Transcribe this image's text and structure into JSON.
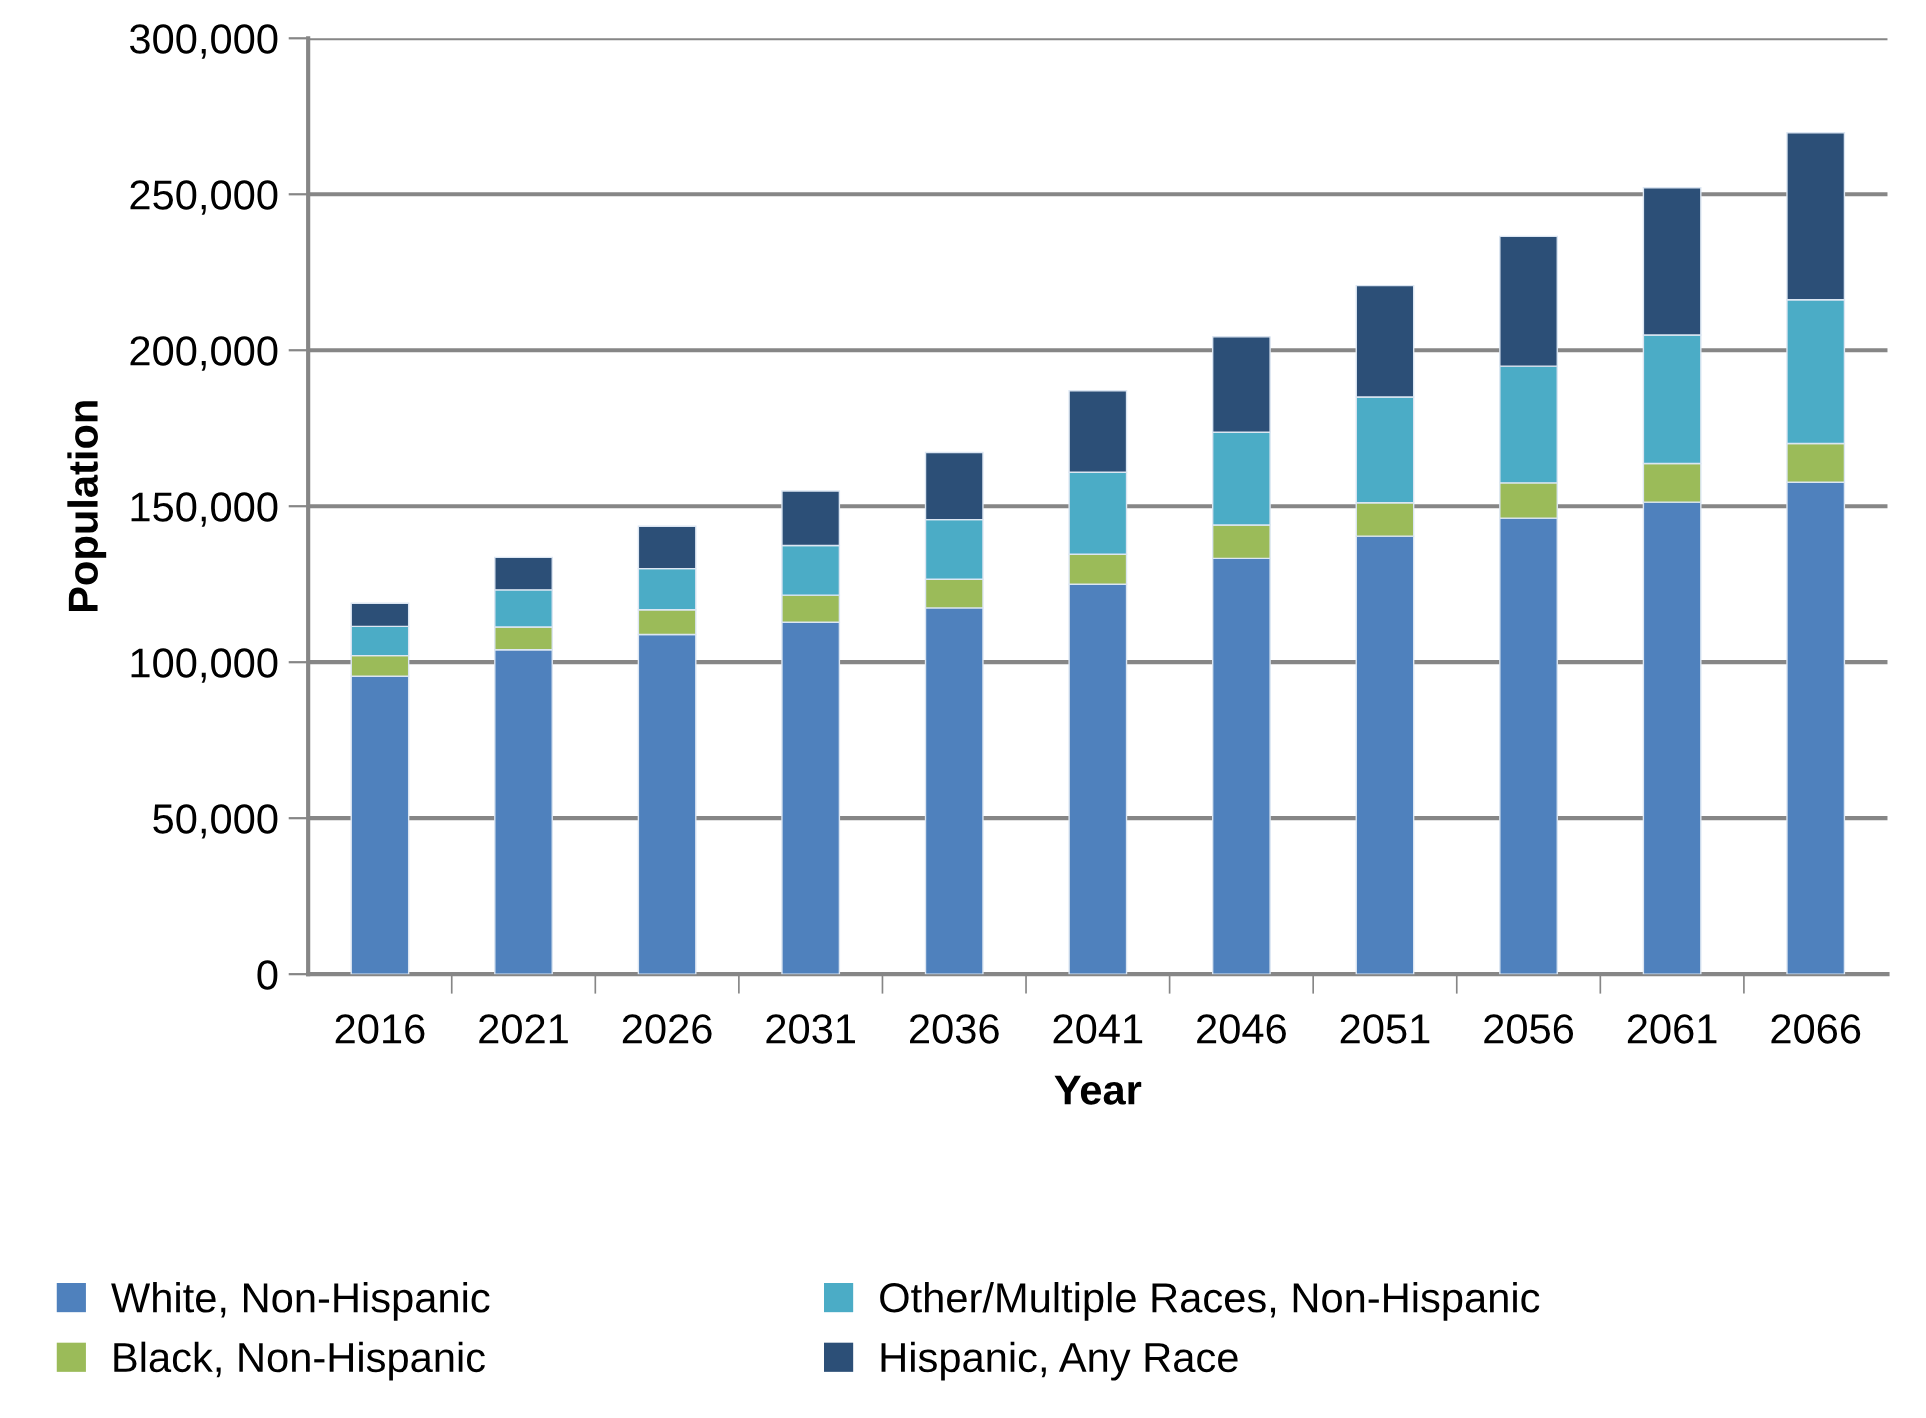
{
  "chart_data": {
    "type": "bar",
    "stacked": true,
    "xlabel": "Year",
    "ylabel": "Population",
    "categories": [
      "2016",
      "2021",
      "2026",
      "2031",
      "2036",
      "2041",
      "2046",
      "2051",
      "2056",
      "2061",
      "2066"
    ],
    "series": [
      {
        "name": "White, Non-Hispanic",
        "color": "#4f81bd",
        "values": [
          95500,
          104000,
          108900,
          112800,
          117400,
          125000,
          133300,
          140400,
          146200,
          151300,
          157700
        ]
      },
      {
        "name": "Black, Non-Hispanic",
        "color": "#9bbb59",
        "values": [
          6600,
          7300,
          7900,
          8700,
          9200,
          9600,
          10700,
          10700,
          11300,
          12400,
          12400
        ]
      },
      {
        "name": "Other/Multiple Races, Non-Hispanic",
        "color": "#4bacc6",
        "values": [
          9400,
          11900,
          13200,
          15900,
          19100,
          26300,
          29700,
          33900,
          37400,
          41200,
          46100
        ]
      },
      {
        "name": "Hispanic, Any Race",
        "color": "#2c4f77",
        "values": [
          7400,
          10400,
          13600,
          17500,
          21500,
          26100,
          30600,
          35700,
          41600,
          47200,
          53500
        ]
      }
    ],
    "ylim": [
      0,
      300000
    ],
    "yticks": [
      {
        "value": 0,
        "label": "0"
      },
      {
        "value": 50000,
        "label": "50,000"
      },
      {
        "value": 100000,
        "label": "100,000"
      },
      {
        "value": 150000,
        "label": "150,000"
      },
      {
        "value": 200000,
        "label": "200,000"
      },
      {
        "value": 250000,
        "label": "250,000"
      },
      {
        "value": 300000,
        "label": "300,000"
      }
    ],
    "grid": "y",
    "legend": "bottom"
  }
}
